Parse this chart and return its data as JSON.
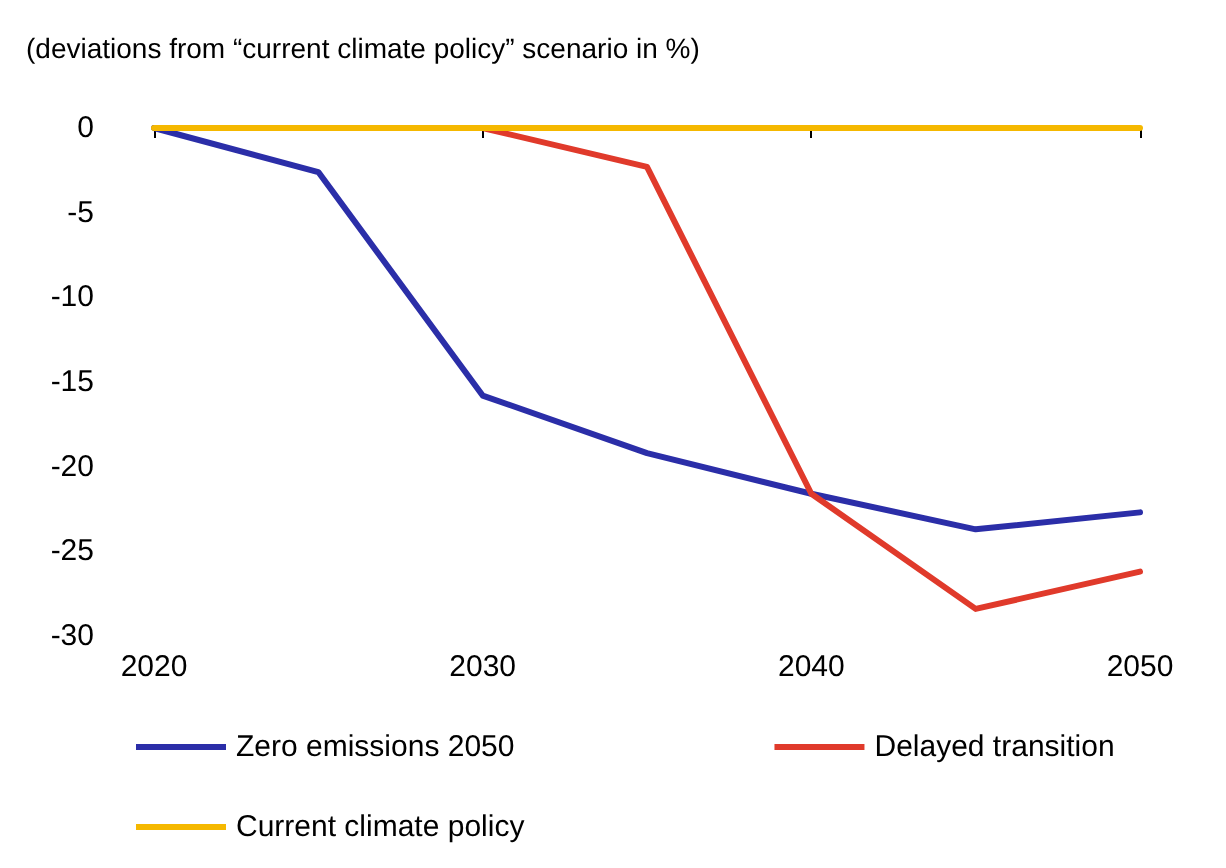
{
  "chart_data": {
    "type": "line",
    "subtitle": "(deviations from “current climate policy” scenario in %)",
    "x": [
      2020,
      2025,
      2030,
      2035,
      2040,
      2045,
      2050
    ],
    "series": [
      {
        "name": "Zero emissions 2050",
        "color": "#2b2ea8",
        "values": [
          0,
          -2.6,
          -15.8,
          -19.2,
          -21.6,
          -23.7,
          -22.7
        ]
      },
      {
        "name": "Delayed transition",
        "color": "#e03a2b",
        "values": [
          null,
          null,
          0,
          -2.3,
          -21.6,
          -28.4,
          -26.2
        ]
      },
      {
        "name": "Current climate policy",
        "color": "#f5b800",
        "values": [
          0,
          0,
          0,
          0,
          0,
          0,
          0
        ]
      }
    ],
    "xlim": [
      2020,
      2050
    ],
    "xticks": [
      2020,
      2030,
      2040,
      2050
    ],
    "ylim": [
      -30,
      0
    ],
    "yticks": [
      0,
      -5,
      -10,
      -15,
      -20,
      -25,
      -30
    ],
    "grid": false,
    "legend": "bottom",
    "marker": "none",
    "line_style": "solid"
  }
}
